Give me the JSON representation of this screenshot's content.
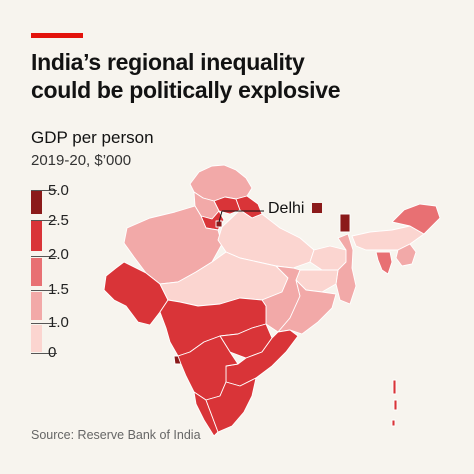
{
  "header": {
    "title_line1": "India’s regional inequality",
    "title_line2": "could be politically explosive"
  },
  "legend": {
    "title": "GDP per person",
    "subtitle": "2019-20, $’000",
    "labels": [
      "5.0",
      "2.5",
      "2.0",
      "1.5",
      "1.0",
      "0"
    ],
    "colors": [
      "#8b1a1a",
      "#d93438",
      "#e87073",
      "#f2a9a8",
      "#fbd5d0"
    ]
  },
  "callout": {
    "label": "Delhi"
  },
  "footer": {
    "source": "Source: Reserve Bank of India"
  },
  "colors": {
    "accent": "#e3120b",
    "background": "#f7f4ee",
    "border": "#ffffff"
  }
}
